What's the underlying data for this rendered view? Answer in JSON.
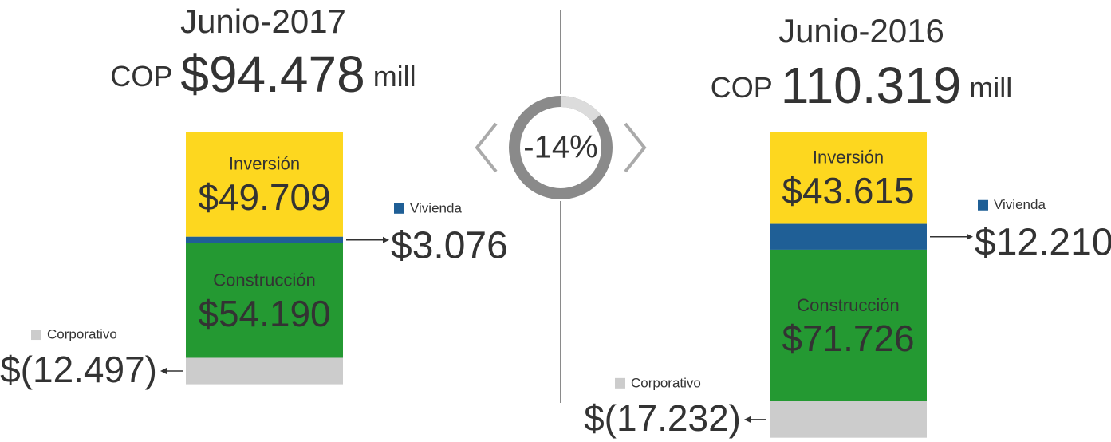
{
  "panels": [
    {
      "period": "Junio-2017",
      "currency": "COP",
      "total": {
        "value": 94478,
        "label": "$94.478"
      },
      "unit": "mill",
      "segments": [
        {
          "name": "Inversión",
          "value": 49709,
          "label": "$49.709",
          "color": "#fdd71f"
        },
        {
          "name": "Vivienda",
          "value": 3076,
          "label": "$3.076",
          "color": "#1f5f96"
        },
        {
          "name": "Construcción",
          "value": 54190,
          "label": "$54.190",
          "color": "#249932"
        },
        {
          "name": "Corporativo",
          "value": -12497,
          "label": "$(12.497)",
          "color": "#cccccc"
        }
      ]
    },
    {
      "period": "Junio-2016",
      "currency": "COP",
      "total": {
        "value": 110319,
        "label": "110.319"
      },
      "unit": "mill",
      "segments": [
        {
          "name": "Inversión",
          "value": 43615,
          "label": "$43.615",
          "color": "#fdd71f"
        },
        {
          "name": "Vivienda",
          "value": 12210,
          "label": "$12.210",
          "color": "#1f5f96"
        },
        {
          "name": "Construcción",
          "value": 71726,
          "label": "$71.726",
          "color": "#249932"
        },
        {
          "name": "Corporativo",
          "value": -17232,
          "label": "$(17.232)",
          "color": "#cccccc"
        }
      ]
    }
  ],
  "change": {
    "value": -14,
    "label": "-14%"
  }
}
